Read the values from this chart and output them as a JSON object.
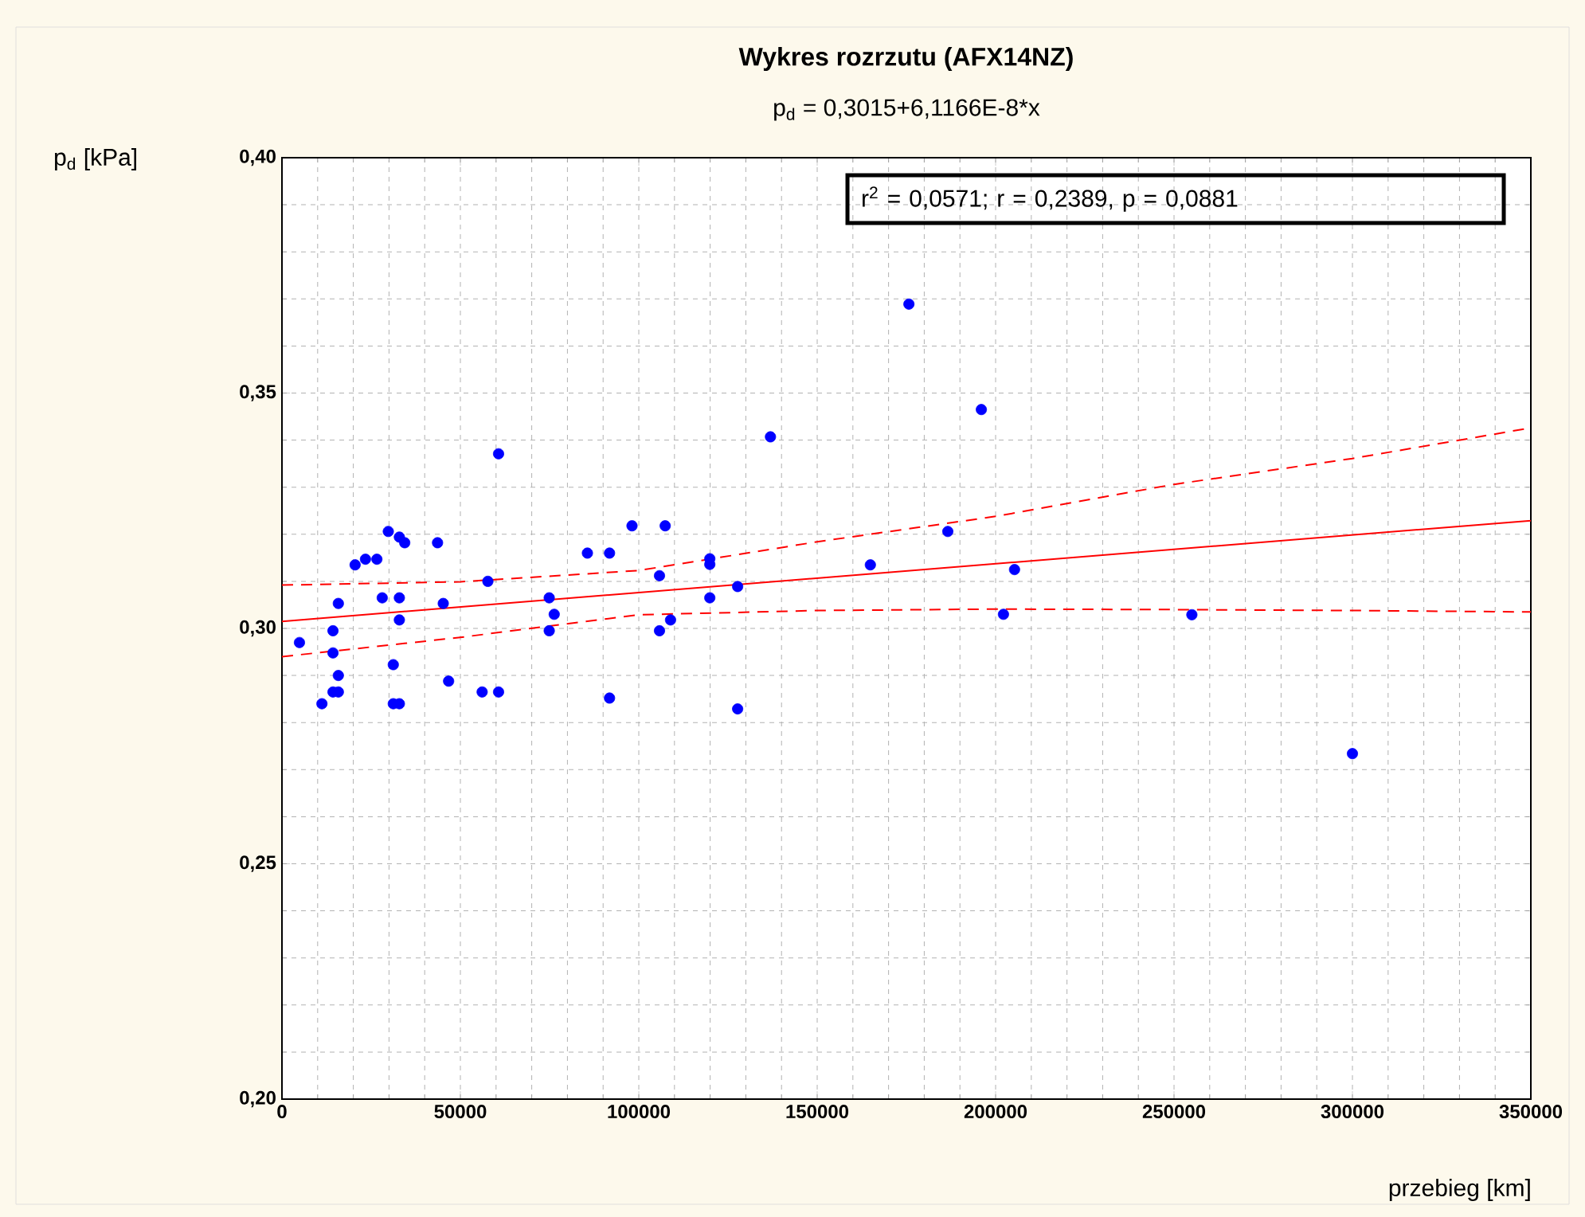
{
  "chart_data": {
    "type": "scatter",
    "title": "Wykres rozrzutu (AFX14NZ)",
    "subtitle": "p$_{d}$ = 0,3015+6,1166E-8*x",
    "xlabel": "przebieg [km]",
    "ylabel": "p$_{d}$ [kPa]",
    "annotations": [
      "r$^{2}$ = 0,0571;  r = 0,2389, p = 0,0881"
    ],
    "xlim": [
      0,
      350000
    ],
    "ylim": [
      0.2,
      0.4
    ],
    "xticks": [
      0,
      50000,
      100000,
      150000,
      200000,
      250000,
      300000,
      350000
    ],
    "yticks": [
      {
        "value": 0.2,
        "label": "0,20"
      },
      {
        "value": 0.25,
        "label": "0,25"
      },
      {
        "value": 0.3,
        "label": "0,30"
      },
      {
        "value": 0.35,
        "label": "0,35"
      },
      {
        "value": 0.4,
        "label": "0,40"
      }
    ],
    "grid": true,
    "series": [
      {
        "type": "scatter",
        "color": "#0000ff",
        "marker": "circle",
        "x": [
          4900,
          11200,
          14300,
          14300,
          15800,
          15800,
          14300,
          15800,
          20500,
          23400,
          26600,
          28100,
          29800,
          31200,
          31200,
          32900,
          32900,
          34400,
          32900,
          32900,
          43600,
          45200,
          46700,
          56100,
          60700,
          60700,
          57700,
          74900,
          76300,
          74900,
          85600,
          91800,
          91800,
          98100,
          107400,
          105800,
          105800,
          108900,
          119900,
          119900,
          119900,
          127700,
          127700,
          136900,
          164900,
          196000,
          186600,
          205300,
          202200,
          175700,
          255000,
          300000
        ],
        "values": [
          0.297,
          0.284,
          0.2995,
          0.2948,
          0.3053,
          0.29,
          0.2865,
          0.2865,
          0.3135,
          0.3147,
          0.3147,
          0.3065,
          0.3206,
          0.2923,
          0.284,
          0.284,
          0.3194,
          0.3182,
          0.3065,
          0.3018,
          0.3182,
          0.3053,
          0.2888,
          0.2865,
          0.2865,
          0.3371,
          0.31,
          0.3065,
          0.303,
          0.2995,
          0.316,
          0.316,
          0.2852,
          0.3218,
          0.3218,
          0.3112,
          0.2995,
          0.3018,
          0.3148,
          0.3136,
          0.3065,
          0.3089,
          0.2829,
          0.3407,
          0.3135,
          0.3465,
          0.3206,
          0.3125,
          0.303,
          0.3689,
          0.3029,
          0.2734
        ]
      },
      {
        "type": "line",
        "color": "#ff0000",
        "line_style": "solid",
        "marker": "none",
        "x": [
          0,
          350000
        ],
        "values": [
          0.3015,
          0.3229
        ]
      },
      {
        "type": "line",
        "color": "#ff0000",
        "line_style": "dashed",
        "marker": "none",
        "x": [
          0,
          50000,
          100000,
          150000,
          200000,
          250000,
          300000,
          350000
        ],
        "values": [
          0.3092,
          0.3099,
          0.3123,
          0.3184,
          0.3238,
          0.3306,
          0.3361,
          0.3426
        ]
      },
      {
        "type": "line",
        "color": "#ff0000",
        "line_style": "dashed",
        "marker": "none",
        "x": [
          0,
          50000,
          100000,
          150000,
          200000,
          250000,
          300000,
          350000
        ],
        "values": [
          0.294,
          0.2981,
          0.3029,
          0.3038,
          0.3041,
          0.304,
          0.3038,
          0.3035
        ]
      }
    ]
  }
}
